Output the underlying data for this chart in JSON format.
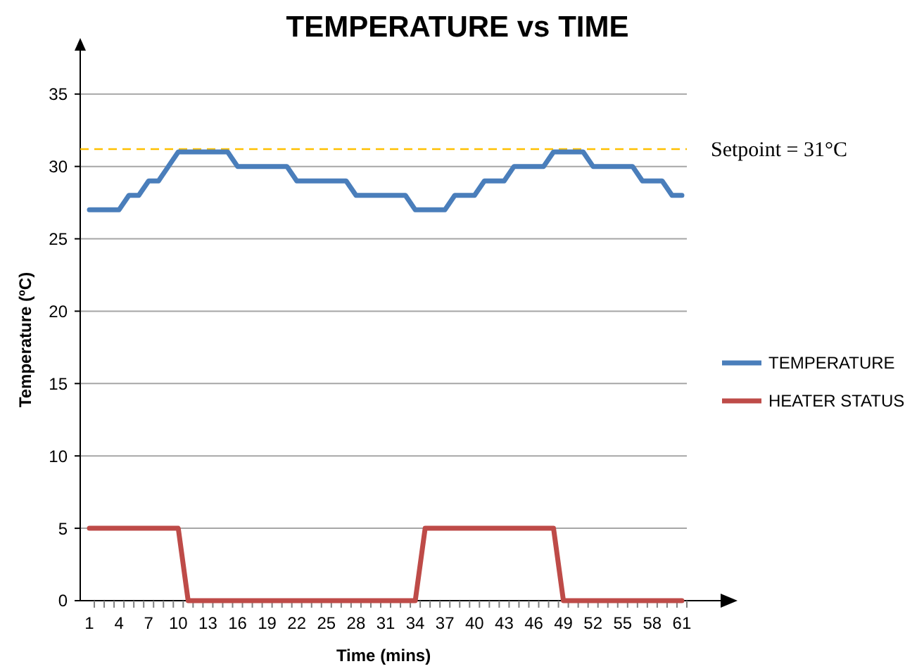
{
  "chart_data": {
    "type": "line",
    "title": "TEMPERATURE vs TIME",
    "xlabel": "Time (mins)",
    "ylabel": "Temperature (ºC)",
    "categories": [
      "1",
      null,
      null,
      "4",
      null,
      null,
      "7",
      null,
      null,
      "10",
      null,
      null,
      "13",
      null,
      null,
      "16",
      null,
      null,
      "19",
      null,
      null,
      "22",
      null,
      null,
      "25",
      null,
      null,
      "28",
      null,
      null,
      "31",
      null,
      null,
      "34",
      null,
      null,
      "37",
      null,
      null,
      "40",
      null,
      null,
      "43",
      null,
      null,
      "46",
      null,
      null,
      "49",
      null,
      null,
      "52",
      null,
      null,
      "55",
      null,
      null,
      "58",
      null,
      null,
      "61"
    ],
    "series": [
      {
        "name": "TEMPERATURE",
        "color": "#4a7ebb",
        "values": [
          27,
          27,
          27,
          27,
          28,
          28,
          29,
          29,
          30,
          31,
          31,
          31,
          31,
          31,
          31,
          30,
          30,
          30,
          30,
          30,
          30,
          29,
          29,
          29,
          29,
          29,
          29,
          28,
          28,
          28,
          28,
          28,
          28,
          27,
          27,
          27,
          27,
          28,
          28,
          28,
          29,
          29,
          29,
          30,
          30,
          30,
          30,
          31,
          31,
          31,
          31,
          30,
          30,
          30,
          30,
          30,
          29,
          29,
          29,
          28,
          28
        ]
      },
      {
        "name": "HEATER STATUS",
        "color": "#be4b48",
        "values": [
          5,
          5,
          5,
          5,
          5,
          5,
          5,
          5,
          5,
          5,
          0,
          0,
          0,
          0,
          0,
          0,
          0,
          0,
          0,
          0,
          0,
          0,
          0,
          0,
          0,
          0,
          0,
          0,
          0,
          0,
          0,
          0,
          0,
          0,
          5,
          5,
          5,
          5,
          5,
          5,
          5,
          5,
          5,
          5,
          5,
          5,
          5,
          5,
          0,
          0,
          0,
          0,
          0,
          0,
          0,
          0,
          0,
          0,
          0,
          0,
          0
        ]
      }
    ],
    "ylim": [
      0,
      38
    ],
    "yticks": [
      0,
      5,
      10,
      15,
      20,
      25,
      30,
      35
    ],
    "grid": "y",
    "legend": "right",
    "ref_lines": [
      {
        "axis": "y",
        "value": 31.2,
        "label": "Setpoint = 31°C",
        "color": "#ffc000",
        "line_style": "dashed"
      }
    ]
  }
}
